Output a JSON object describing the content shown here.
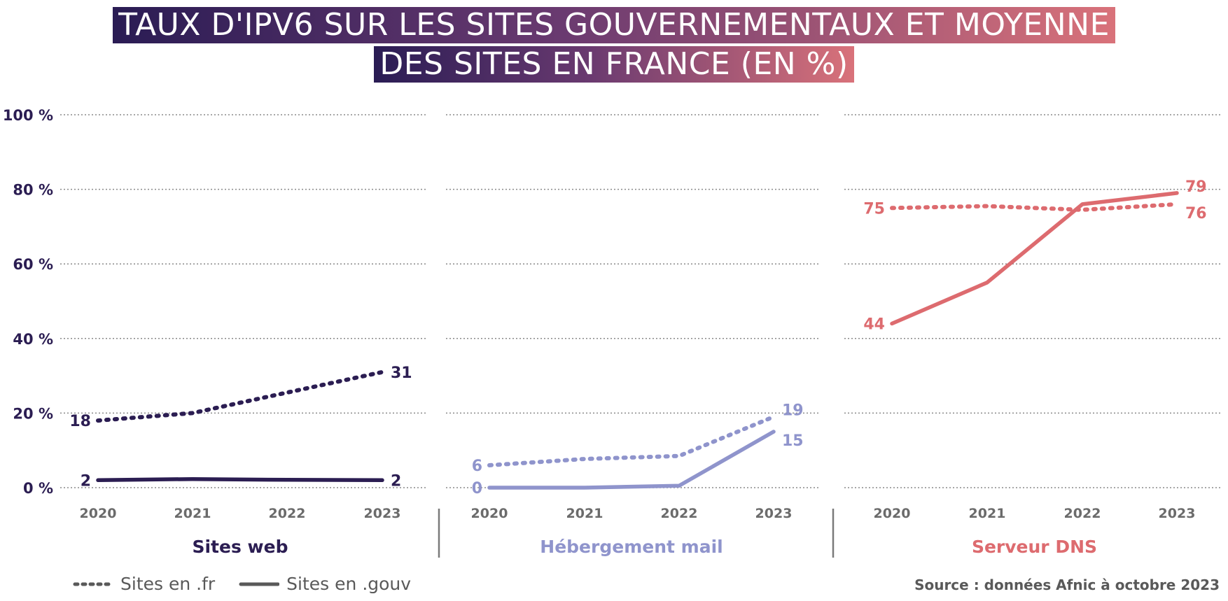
{
  "title_lines": [
    "TAUX D'IPV6 SUR LES SITES GOUVERNEMENTAUX ET MOYENNE",
    "DES SITES EN FRANCE (EN %)"
  ],
  "legend": {
    "fr_label": "Sites en .fr",
    "gouv_label": "Sites en .gouv"
  },
  "source": "Source : données Afnic à octobre 2023",
  "chart_data": {
    "type": "line",
    "x": [
      "2020",
      "2021",
      "2022",
      "2023"
    ],
    "ylim": [
      0,
      100
    ],
    "yticks": [
      0,
      20,
      40,
      60,
      80,
      100
    ],
    "ytick_labels": [
      "0 %",
      "20 %",
      "40 %",
      "60 %",
      "80 %",
      "100 %"
    ],
    "grid": true,
    "legend_position": "bottom-left",
    "panels": [
      {
        "label": "Sites web",
        "color": "#2b1d52",
        "series": [
          {
            "name": "Sites en .fr",
            "style": "dotted",
            "values": [
              18,
              20,
              25.5,
              31
            ],
            "labels": [
              "18",
              "",
              "",
              "31"
            ]
          },
          {
            "name": "Sites en .gouv",
            "style": "solid",
            "values": [
              2,
              2.3,
              2.1,
              2
            ],
            "labels": [
              "2",
              "",
              "",
              "2"
            ]
          }
        ]
      },
      {
        "label": "Hébergement mail",
        "color": "#8f94cc",
        "series": [
          {
            "name": "Sites en .fr",
            "style": "dotted",
            "values": [
              6,
              7.7,
              8.5,
              19
            ],
            "labels": [
              "6",
              "",
              "",
              "19"
            ]
          },
          {
            "name": "Sites en .gouv",
            "style": "solid",
            "values": [
              0,
              0,
              0.5,
              15
            ],
            "labels": [
              "0",
              "",
              "",
              "15"
            ]
          }
        ]
      },
      {
        "label": "Serveur DNS",
        "color": "#dd6b6f",
        "series": [
          {
            "name": "Sites en .fr",
            "style": "dotted",
            "values": [
              75,
              75.5,
              74.5,
              76
            ],
            "labels": [
              "75",
              "",
              "",
              "76"
            ]
          },
          {
            "name": "Sites en .gouv",
            "style": "solid",
            "values": [
              44,
              55,
              76,
              79
            ],
            "labels": [
              "44",
              "",
              "",
              "79"
            ]
          }
        ]
      }
    ]
  }
}
